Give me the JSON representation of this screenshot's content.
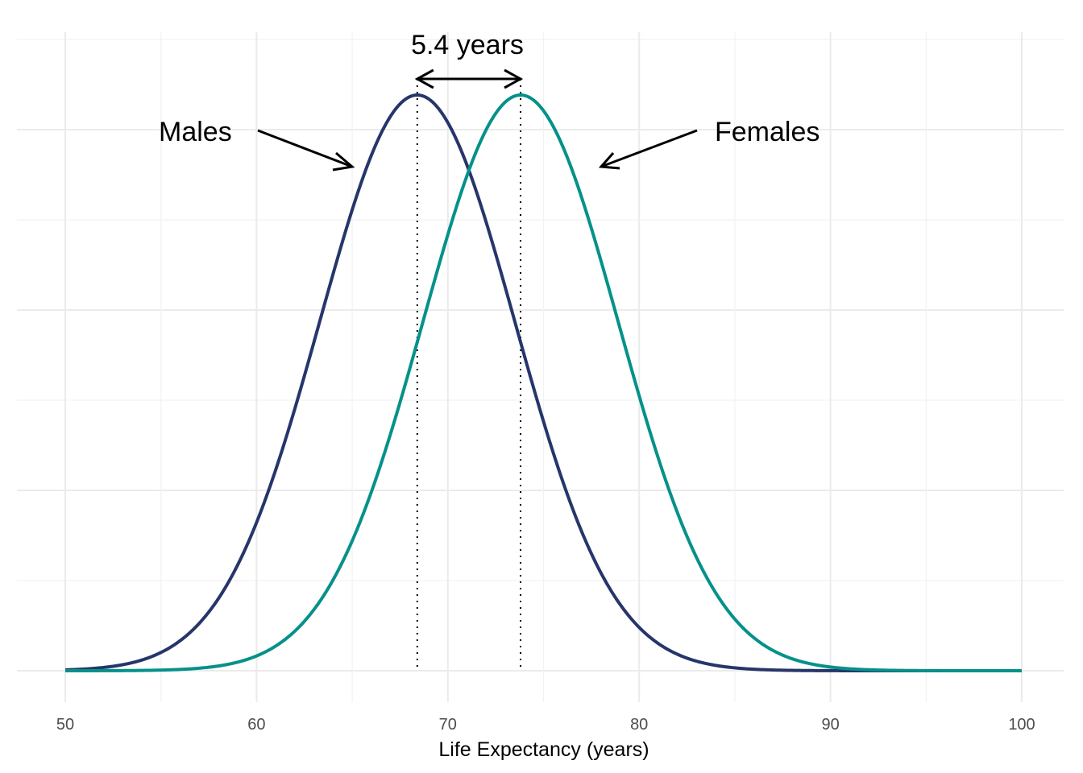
{
  "chart_data": {
    "type": "line",
    "title": "",
    "xlabel": "Life Expectancy (years)",
    "ylabel": "",
    "xlim": [
      50,
      100
    ],
    "x_ticks": [
      "50",
      "60",
      "70",
      "80",
      "90",
      "100"
    ],
    "x_tick_values": [
      50,
      60,
      70,
      80,
      90,
      100
    ],
    "grid": true,
    "series": [
      {
        "name": "Males",
        "distribution": "normal",
        "mean": 68.4,
        "sd": 5.1,
        "color": "#26366b"
      },
      {
        "name": "Females",
        "distribution": "normal",
        "mean": 73.8,
        "sd": 5.1,
        "color": "#05918a"
      }
    ],
    "annotations": {
      "males_label": "Males",
      "females_label": "Females",
      "gap_label": "5.4 years"
    }
  }
}
